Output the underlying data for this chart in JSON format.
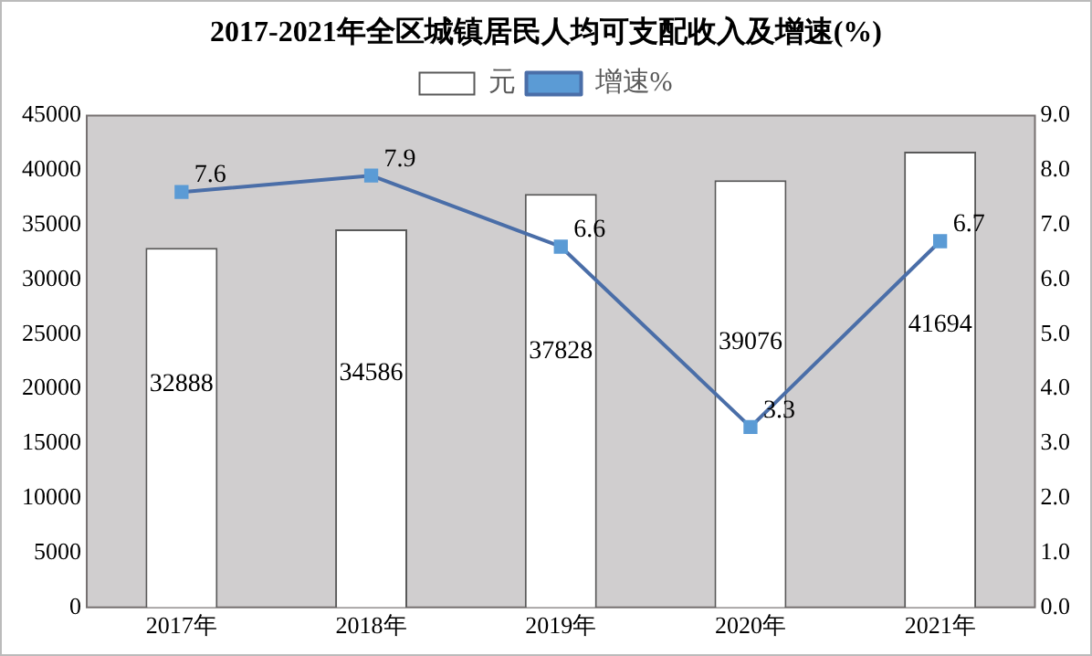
{
  "chart_data": {
    "type": "bar",
    "title": "2017-2021年全区城镇居民人均可支配收入及增速(%)",
    "categories": [
      "2017年",
      "2018年",
      "2019年",
      "2020年",
      "2021年"
    ],
    "series": [
      {
        "name": "元",
        "color": "#ffffff",
        "values": [
          32888,
          34586,
          37828,
          39076,
          41694
        ]
      },
      {
        "name": "增速%",
        "type": "line",
        "axis": "y2",
        "color": "#4a6ea8",
        "marker": "square",
        "values": [
          7.6,
          7.9,
          6.6,
          3.3,
          6.7
        ]
      }
    ],
    "ylim": [
      0,
      45000
    ],
    "yticks": [
      0,
      5000,
      10000,
      15000,
      20000,
      25000,
      30000,
      35000,
      40000,
      45000
    ],
    "y2lim": [
      0,
      9
    ],
    "y2ticks": [
      {
        "value": 0,
        "label": "0.0"
      },
      {
        "value": 1,
        "label": "1.0"
      },
      {
        "value": 2,
        "label": "2.0"
      },
      {
        "value": 3,
        "label": "3.0"
      },
      {
        "value": 4,
        "label": "4.0"
      },
      {
        "value": 5,
        "label": "5.0"
      },
      {
        "value": 6,
        "label": "6.0"
      },
      {
        "value": 7,
        "label": "7.0"
      },
      {
        "value": 8,
        "label": "8.0"
      },
      {
        "value": 9,
        "label": "9.0"
      }
    ],
    "data_labels": true,
    "legend": "top",
    "grid": false
  }
}
